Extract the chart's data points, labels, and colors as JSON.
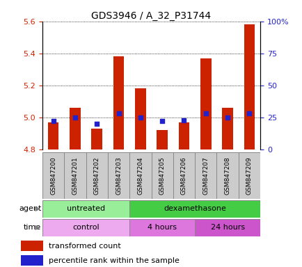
{
  "title": "GDS3946 / A_32_P31744",
  "samples": [
    "GSM847200",
    "GSM847201",
    "GSM847202",
    "GSM847203",
    "GSM847204",
    "GSM847205",
    "GSM847206",
    "GSM847207",
    "GSM847208",
    "GSM847209"
  ],
  "transformed_counts": [
    4.97,
    5.06,
    4.93,
    5.38,
    5.18,
    4.92,
    4.97,
    5.37,
    5.06,
    5.58
  ],
  "percentile_ranks": [
    22,
    25,
    20,
    28,
    25,
    22,
    23,
    28,
    25,
    28
  ],
  "ylim": [
    4.8,
    5.6
  ],
  "yticks": [
    4.8,
    5.0,
    5.2,
    5.4,
    5.6
  ],
  "right_yticks_vals": [
    0,
    25,
    50,
    75,
    100
  ],
  "right_yticks_labels": [
    "0",
    "25",
    "50",
    "75",
    "100%"
  ],
  "right_ylim": [
    0,
    100
  ],
  "bar_color": "#cc2200",
  "dot_color": "#2222cc",
  "bar_bottom": 4.8,
  "agent_groups": [
    {
      "label": "untreated",
      "start": 0,
      "end": 4,
      "color": "#99ee99"
    },
    {
      "label": "dexamethasone",
      "start": 4,
      "end": 10,
      "color": "#44cc44"
    }
  ],
  "time_groups": [
    {
      "label": "control",
      "start": 0,
      "end": 4,
      "color": "#eeaaee"
    },
    {
      "label": "4 hours",
      "start": 4,
      "end": 7,
      "color": "#dd77dd"
    },
    {
      "label": "24 hours",
      "start": 7,
      "end": 10,
      "color": "#cc55cc"
    }
  ],
  "legend_items": [
    {
      "label": "transformed count",
      "color": "#cc2200"
    },
    {
      "label": "percentile rank within the sample",
      "color": "#2222cc"
    }
  ],
  "ylabel_color": "#cc2200",
  "right_ylabel_color": "#2222cc",
  "xlabel_bg_color": "#cccccc",
  "xlabel_edge_color": "#888888"
}
